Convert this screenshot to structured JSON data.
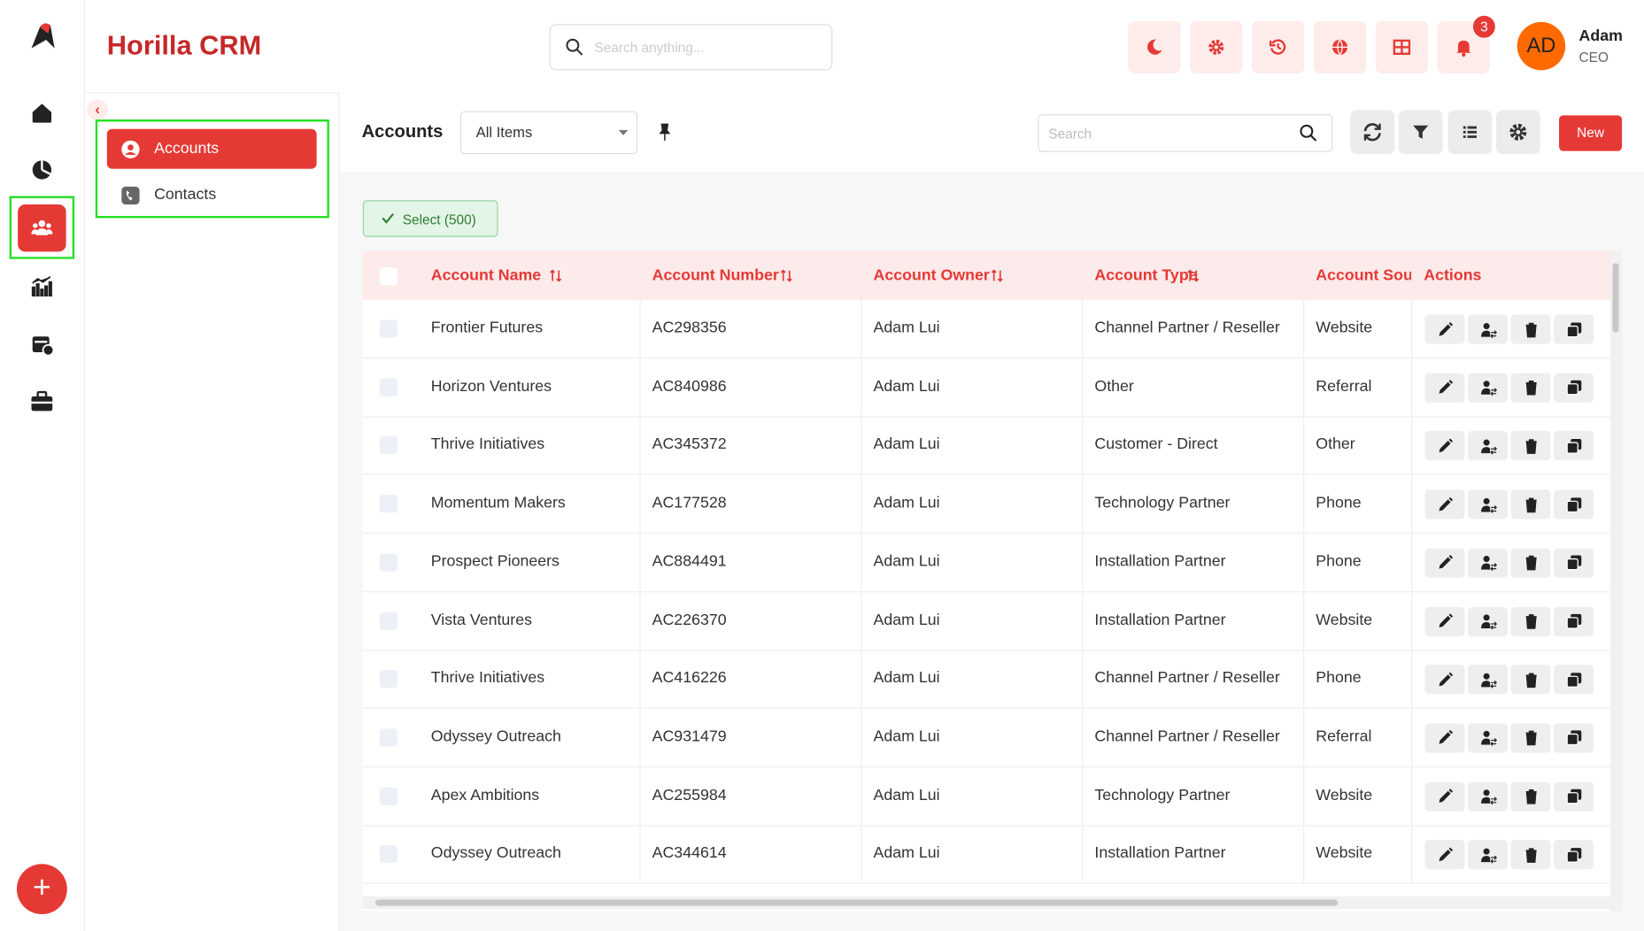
{
  "header": {
    "title": "Horilla CRM",
    "search_placeholder": "Search anything...",
    "notifications": 3,
    "avatar": "AD",
    "user_name": "Adam",
    "user_role": "CEO"
  },
  "submenu": [
    "Accounts",
    "Contacts"
  ],
  "toolbar": {
    "title": "Accounts",
    "view": "All Items",
    "search_placeholder": "Search",
    "new_button": "New",
    "select_button": "Select (500)"
  },
  "table": {
    "columns": [
      "Account Name",
      "Account Number",
      "Account Owner",
      "Account Type",
      "Account Source",
      "Actions"
    ],
    "rows": [
      [
        "Frontier Futures",
        "AC298356",
        "Adam Lui",
        "Channel Partner / Reseller",
        "Website"
      ],
      [
        "Horizon Ventures",
        "AC840986",
        "Adam Lui",
        "Other",
        "Referral"
      ],
      [
        "Thrive Initiatives",
        "AC345372",
        "Adam Lui",
        "Customer - Direct",
        "Other"
      ],
      [
        "Momentum Makers",
        "AC177528",
        "Adam Lui",
        "Technology Partner",
        "Phone"
      ],
      [
        "Prospect Pioneers",
        "AC884491",
        "Adam Lui",
        "Installation Partner",
        "Phone"
      ],
      [
        "Vista Ventures",
        "AC226370",
        "Adam Lui",
        "Installation Partner",
        "Website"
      ],
      [
        "Thrive Initiatives",
        "AC416226",
        "Adam Lui",
        "Channel Partner / Reseller",
        "Phone"
      ],
      [
        "Odyssey Outreach",
        "AC931479",
        "Adam Lui",
        "Channel Partner / Reseller",
        "Referral"
      ],
      [
        "Apex Ambitions",
        "AC255984",
        "Adam Lui",
        "Technology Partner",
        "Website"
      ],
      [
        "Odyssey Outreach",
        "AC344614",
        "Adam Lui",
        "Installation Partner",
        "Website"
      ]
    ]
  }
}
